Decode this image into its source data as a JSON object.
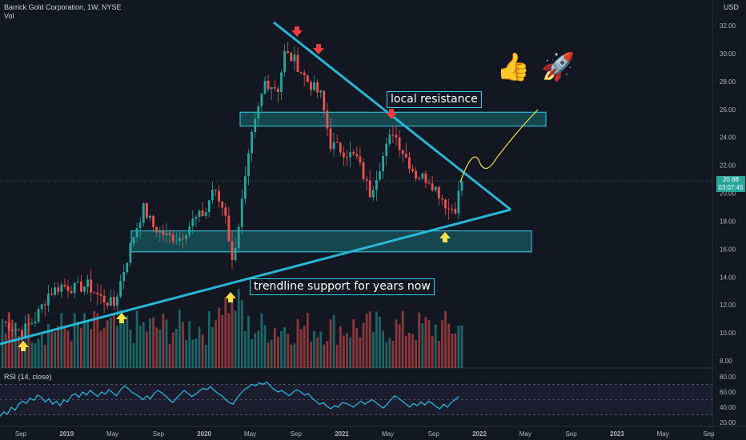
{
  "header": {
    "symbol_line": "Barrick Gold Corporation, 1W, NYSE",
    "vol_label": "Vol",
    "currency": "USD",
    "rsi_label": "RSI (14, close)"
  },
  "last_price": {
    "value": "20.88",
    "countdown": "03:07:45"
  },
  "annotations": {
    "resistance": "local resistance",
    "support": "trendline support for years now"
  },
  "icons": {
    "thumbs": "thumbs-up-icon",
    "rocket": "rocket-icon"
  },
  "colors": {
    "background": "#131722",
    "up": "#26a69a",
    "down": "#ef5350",
    "trendline": "#29b6d6",
    "zone": "#20a0a0",
    "rsi": "#2ab4d8",
    "projection": "#f5e04a"
  },
  "chart_data": {
    "type": "candlestick",
    "title": "Barrick Gold Corporation, 1W, NYSE",
    "price_axis": {
      "ticks": [
        "32.00",
        "30.00",
        "28.00",
        "26.00",
        "24.00",
        "22.00",
        "20.00",
        "18.00",
        "16.00",
        "14.00",
        "12.00",
        "10.00",
        "8.00"
      ],
      "range": [
        7.4,
        33.6
      ]
    },
    "time_axis": {
      "ticks": [
        "Sep",
        "2019",
        "May",
        "Sep",
        "2020",
        "May",
        "Sep",
        "2021",
        "May",
        "Sep",
        "2022",
        "May",
        "Sep",
        "2023",
        "May",
        "Sep"
      ]
    },
    "price_path_anchors": [
      {
        "week": 0,
        "close": 10.8
      },
      {
        "week": 3,
        "close": 10.4
      },
      {
        "week": 6,
        "close": 10.1
      },
      {
        "week": 10,
        "close": 11.0
      },
      {
        "week": 14,
        "close": 12.8
      },
      {
        "week": 18,
        "close": 13.4
      },
      {
        "week": 22,
        "close": 13.2
      },
      {
        "week": 26,
        "close": 13.4
      },
      {
        "week": 30,
        "close": 12.5
      },
      {
        "week": 34,
        "close": 12.0
      },
      {
        "week": 37,
        "close": 14.5
      },
      {
        "week": 40,
        "close": 17.0
      },
      {
        "week": 43,
        "close": 18.9
      },
      {
        "week": 46,
        "close": 17.6
      },
      {
        "week": 50,
        "close": 16.9
      },
      {
        "week": 54,
        "close": 16.8
      },
      {
        "week": 58,
        "close": 18.0
      },
      {
        "week": 62,
        "close": 18.7
      },
      {
        "week": 64,
        "close": 20.3
      },
      {
        "week": 68,
        "close": 18.6
      },
      {
        "week": 70,
        "close": 15.0
      },
      {
        "week": 72,
        "close": 17.8
      },
      {
        "week": 76,
        "close": 24.0
      },
      {
        "week": 80,
        "close": 28.0
      },
      {
        "week": 84,
        "close": 27.5
      },
      {
        "week": 86,
        "close": 30.0
      },
      {
        "week": 89,
        "close": 29.5
      },
      {
        "week": 93,
        "close": 28.0
      },
      {
        "week": 97,
        "close": 27.0
      },
      {
        "week": 100,
        "close": 23.5
      },
      {
        "week": 104,
        "close": 23.0
      },
      {
        "week": 108,
        "close": 22.5
      },
      {
        "week": 112,
        "close": 20.0
      },
      {
        "week": 115,
        "close": 22.0
      },
      {
        "week": 119,
        "close": 24.5
      },
      {
        "week": 122,
        "close": 23.0
      },
      {
        "week": 126,
        "close": 21.3
      },
      {
        "week": 130,
        "close": 21.0
      },
      {
        "week": 133,
        "close": 20.0
      },
      {
        "week": 136,
        "close": 18.9
      },
      {
        "week": 138,
        "close": 19.0
      },
      {
        "week": 140,
        "close": 20.88
      }
    ],
    "rsi": {
      "levels": [
        70,
        50,
        30
      ],
      "ticks": [
        "80.00",
        "60.00",
        "40.00",
        "20.00"
      ],
      "range": [
        17,
        83
      ],
      "values": [
        28,
        34,
        31,
        40,
        36,
        44,
        48,
        45,
        52,
        49,
        56,
        53,
        47,
        51,
        44,
        48,
        42,
        50,
        47,
        55,
        58,
        53,
        60,
        56,
        62,
        58,
        54,
        60,
        57,
        63,
        59,
        55,
        62,
        68,
        65,
        60,
        57,
        54,
        50,
        55,
        51,
        58,
        62,
        59,
        55,
        50,
        46,
        52,
        57,
        62,
        58,
        54,
        57,
        61,
        65,
        63,
        67,
        62,
        58,
        55,
        50,
        46,
        44,
        52,
        58,
        63,
        66,
        70,
        68,
        72,
        70,
        73,
        67,
        63,
        60,
        62,
        58,
        55,
        60,
        63,
        60,
        56,
        58,
        52,
        48,
        44,
        46,
        41,
        38,
        42,
        40,
        46,
        45,
        43,
        40,
        44,
        48,
        44,
        47,
        50,
        46,
        42,
        39,
        44,
        50,
        55,
        52,
        48,
        44,
        40,
        45,
        42,
        47,
        43,
        48,
        45,
        41,
        38,
        44,
        40,
        46,
        50,
        54
      ]
    },
    "zones": [
      {
        "name": "local resistance",
        "low": 24.8,
        "high": 25.8
      },
      {
        "name": "support zone",
        "low": 15.8,
        "high": 17.3
      }
    ]
  }
}
